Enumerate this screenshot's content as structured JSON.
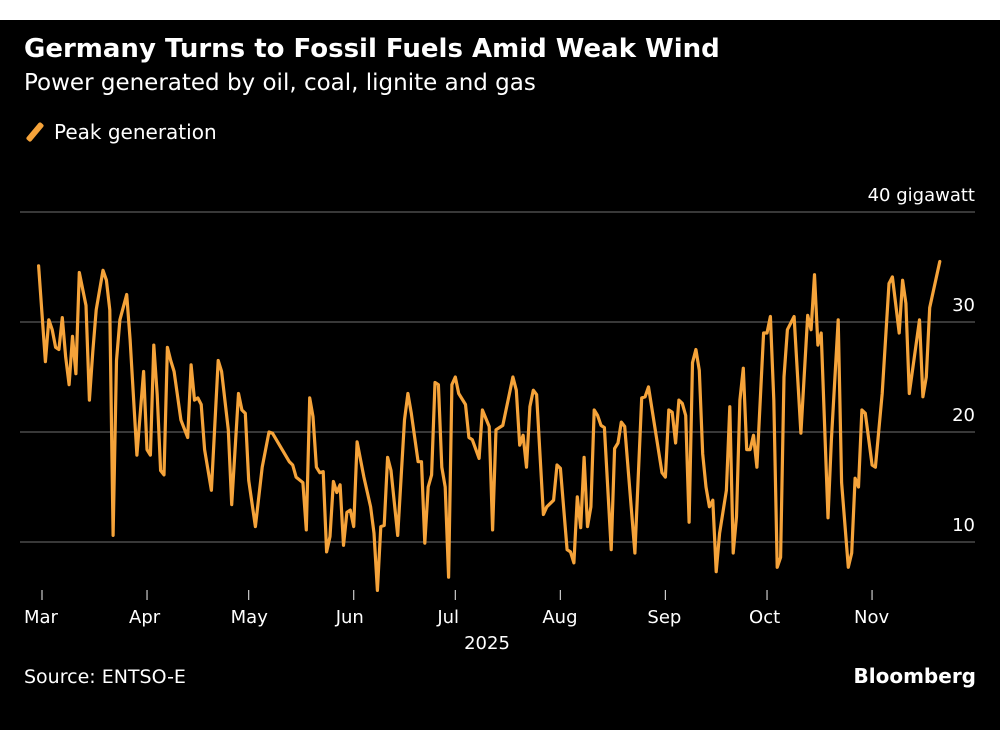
{
  "title": "Germany Turns to Fossil Fuels Amid Weak Wind",
  "subtitle": "Power generated by oil, coal, lignite and gas",
  "source": "Source: ENTSO-E",
  "brand": "Bloomberg",
  "chart_data": {
    "type": "line",
    "title": "Germany Turns to Fossil Fuels Amid Weak Wind",
    "subtitle": "Power generated by oil, coal, lignite and gas",
    "xlabel": "2025",
    "ylabel": "",
    "y_unit_label": "40 gigawatt",
    "ylim": [
      0,
      40
    ],
    "y_ticks": [
      {
        "value": 40,
        "label": "40 gigawatt"
      },
      {
        "value": 30,
        "label": "30"
      },
      {
        "value": 20,
        "label": "20"
      },
      {
        "value": 10,
        "label": "10"
      }
    ],
    "x_ticks": [
      {
        "date": "2025-03-01",
        "label": "Mar"
      },
      {
        "date": "2025-04-01",
        "label": "Apr"
      },
      {
        "date": "2025-05-01",
        "label": "May"
      },
      {
        "date": "2025-06-01",
        "label": "Jun"
      },
      {
        "date": "2025-07-01",
        "label": "Jul"
      },
      {
        "date": "2025-08-01",
        "label": "Aug"
      },
      {
        "date": "2025-09-01",
        "label": "Sep"
      },
      {
        "date": "2025-10-01",
        "label": "Oct"
      },
      {
        "date": "2025-11-01",
        "label": "Nov"
      }
    ],
    "grid": true,
    "legend_position": "top-left",
    "color": "#f5a33a",
    "series": [
      {
        "name": "Peak generation",
        "points": [
          [
            "2025-02-28",
            35.1
          ],
          [
            "2025-03-02",
            26.4
          ],
          [
            "2025-03-03",
            30.2
          ],
          [
            "2025-03-04",
            29.3
          ],
          [
            "2025-03-05",
            27.7
          ],
          [
            "2025-03-06",
            27.5
          ],
          [
            "2025-03-07",
            30.4
          ],
          [
            "2025-03-08",
            26.8
          ],
          [
            "2025-03-09",
            24.3
          ],
          [
            "2025-03-10",
            28.7
          ],
          [
            "2025-03-11",
            25.3
          ],
          [
            "2025-03-12",
            34.5
          ],
          [
            "2025-03-14",
            31.5
          ],
          [
            "2025-03-15",
            22.9
          ],
          [
            "2025-03-16",
            27.3
          ],
          [
            "2025-03-17",
            31.1
          ],
          [
            "2025-03-19",
            34.7
          ],
          [
            "2025-03-20",
            33.8
          ],
          [
            "2025-03-21",
            31.1
          ],
          [
            "2025-03-22",
            10.6
          ],
          [
            "2025-03-23",
            26.5
          ],
          [
            "2025-03-24",
            30.2
          ],
          [
            "2025-03-26",
            32.5
          ],
          [
            "2025-03-27",
            28.4
          ],
          [
            "2025-03-29",
            17.9
          ],
          [
            "2025-03-31",
            25.5
          ],
          [
            "2025-04-01",
            18.4
          ],
          [
            "2025-04-02",
            17.9
          ],
          [
            "2025-04-03",
            27.9
          ],
          [
            "2025-04-04",
            23.4
          ],
          [
            "2025-04-05",
            16.5
          ],
          [
            "2025-04-06",
            16.1
          ],
          [
            "2025-04-07",
            27.7
          ],
          [
            "2025-04-08",
            26.5
          ],
          [
            "2025-04-09",
            25.5
          ],
          [
            "2025-04-11",
            21.1
          ],
          [
            "2025-04-13",
            19.5
          ],
          [
            "2025-04-14",
            26.1
          ],
          [
            "2025-04-15",
            22.9
          ],
          [
            "2025-04-16",
            23.1
          ],
          [
            "2025-04-17",
            22.5
          ],
          [
            "2025-04-18",
            18.4
          ],
          [
            "2025-04-20",
            14.7
          ],
          [
            "2025-04-22",
            26.5
          ],
          [
            "2025-04-23",
            25.5
          ],
          [
            "2025-04-25",
            20.2
          ],
          [
            "2025-04-26",
            13.4
          ],
          [
            "2025-04-28",
            23.5
          ],
          [
            "2025-04-29",
            22.0
          ],
          [
            "2025-04-30",
            21.7
          ],
          [
            "2025-05-01",
            15.6
          ],
          [
            "2025-05-03",
            11.4
          ],
          [
            "2025-05-05",
            16.8
          ],
          [
            "2025-05-07",
            20.0
          ],
          [
            "2025-05-08",
            19.9
          ],
          [
            "2025-05-13",
            17.3
          ],
          [
            "2025-05-14",
            17.0
          ],
          [
            "2025-05-15",
            15.9
          ],
          [
            "2025-05-17",
            15.4
          ],
          [
            "2025-05-18",
            11.1
          ],
          [
            "2025-05-19",
            23.1
          ],
          [
            "2025-05-20",
            21.4
          ],
          [
            "2025-05-21",
            16.8
          ],
          [
            "2025-05-22",
            16.3
          ],
          [
            "2025-05-23",
            16.4
          ],
          [
            "2025-05-24",
            9.1
          ],
          [
            "2025-05-25",
            10.5
          ],
          [
            "2025-05-26",
            15.5
          ],
          [
            "2025-05-27",
            14.5
          ],
          [
            "2025-05-28",
            15.2
          ],
          [
            "2025-05-29",
            9.7
          ],
          [
            "2025-05-30",
            12.7
          ],
          [
            "2025-05-31",
            12.9
          ],
          [
            "2025-06-01",
            11.4
          ],
          [
            "2025-06-02",
            19.1
          ],
          [
            "2025-06-04",
            15.9
          ],
          [
            "2025-06-06",
            13.2
          ],
          [
            "2025-06-07",
            10.8
          ],
          [
            "2025-06-08",
            5.6
          ],
          [
            "2025-06-09",
            11.4
          ],
          [
            "2025-06-10",
            11.5
          ],
          [
            "2025-06-11",
            17.7
          ],
          [
            "2025-06-12",
            16.5
          ],
          [
            "2025-06-14",
            10.6
          ],
          [
            "2025-06-16",
            21.1
          ],
          [
            "2025-06-17",
            23.5
          ],
          [
            "2025-06-18",
            21.7
          ],
          [
            "2025-06-20",
            17.3
          ],
          [
            "2025-06-21",
            17.3
          ],
          [
            "2025-06-22",
            9.9
          ],
          [
            "2025-06-23",
            15.0
          ],
          [
            "2025-06-24",
            16.1
          ],
          [
            "2025-06-25",
            24.5
          ],
          [
            "2025-06-26",
            24.3
          ],
          [
            "2025-06-27",
            16.8
          ],
          [
            "2025-06-28",
            15.0
          ],
          [
            "2025-06-29",
            6.8
          ],
          [
            "2025-06-30",
            24.3
          ],
          [
            "2025-07-01",
            25.0
          ],
          [
            "2025-07-02",
            23.5
          ],
          [
            "2025-07-04",
            22.5
          ],
          [
            "2025-07-05",
            19.5
          ],
          [
            "2025-07-06",
            19.3
          ],
          [
            "2025-07-08",
            17.6
          ],
          [
            "2025-07-09",
            22.0
          ],
          [
            "2025-07-11",
            20.5
          ],
          [
            "2025-07-12",
            11.1
          ],
          [
            "2025-07-13",
            20.2
          ],
          [
            "2025-07-15",
            20.6
          ],
          [
            "2025-07-18",
            25.0
          ],
          [
            "2025-07-19",
            23.8
          ],
          [
            "2025-07-20",
            18.8
          ],
          [
            "2025-07-21",
            19.7
          ],
          [
            "2025-07-22",
            16.8
          ],
          [
            "2025-07-23",
            22.3
          ],
          [
            "2025-07-24",
            23.8
          ],
          [
            "2025-07-25",
            23.4
          ],
          [
            "2025-07-27",
            12.5
          ],
          [
            "2025-07-28",
            13.2
          ],
          [
            "2025-07-30",
            13.8
          ],
          [
            "2025-07-31",
            17.0
          ],
          [
            "2025-08-01",
            16.7
          ],
          [
            "2025-08-03",
            9.3
          ],
          [
            "2025-08-04",
            9.1
          ],
          [
            "2025-08-05",
            8.1
          ],
          [
            "2025-08-06",
            14.1
          ],
          [
            "2025-08-07",
            11.3
          ],
          [
            "2025-08-08",
            17.7
          ],
          [
            "2025-08-09",
            11.4
          ],
          [
            "2025-08-10",
            13.2
          ],
          [
            "2025-08-11",
            22.0
          ],
          [
            "2025-08-12",
            21.5
          ],
          [
            "2025-08-13",
            20.6
          ],
          [
            "2025-08-14",
            20.4
          ],
          [
            "2025-08-16",
            9.3
          ],
          [
            "2025-08-17",
            18.5
          ],
          [
            "2025-08-18",
            19.0
          ],
          [
            "2025-08-19",
            20.9
          ],
          [
            "2025-08-20",
            20.5
          ],
          [
            "2025-08-23",
            9.0
          ],
          [
            "2025-08-25",
            23.1
          ],
          [
            "2025-08-26",
            23.2
          ],
          [
            "2025-08-27",
            24.1
          ],
          [
            "2025-08-31",
            16.3
          ],
          [
            "2025-09-01",
            15.9
          ],
          [
            "2025-09-02",
            22.0
          ],
          [
            "2025-09-03",
            21.8
          ],
          [
            "2025-09-04",
            19.0
          ],
          [
            "2025-09-05",
            22.9
          ],
          [
            "2025-09-06",
            22.6
          ],
          [
            "2025-09-07",
            21.5
          ],
          [
            "2025-09-08",
            11.8
          ],
          [
            "2025-09-09",
            26.3
          ],
          [
            "2025-09-10",
            27.5
          ],
          [
            "2025-09-11",
            25.6
          ],
          [
            "2025-09-12",
            18.0
          ],
          [
            "2025-09-13",
            15.0
          ],
          [
            "2025-09-14",
            13.2
          ],
          [
            "2025-09-15",
            13.8
          ],
          [
            "2025-09-16",
            7.3
          ],
          [
            "2025-09-17",
            10.8
          ],
          [
            "2025-09-19",
            14.7
          ],
          [
            "2025-09-20",
            22.3
          ],
          [
            "2025-09-21",
            9.0
          ],
          [
            "2025-09-22",
            12.3
          ],
          [
            "2025-09-23",
            22.9
          ],
          [
            "2025-09-24",
            25.8
          ],
          [
            "2025-09-25",
            18.4
          ],
          [
            "2025-09-26",
            18.4
          ],
          [
            "2025-09-27",
            19.7
          ],
          [
            "2025-09-28",
            16.8
          ],
          [
            "2025-09-30",
            29.0
          ],
          [
            "2025-10-01",
            29.0
          ],
          [
            "2025-10-02",
            30.5
          ],
          [
            "2025-10-03",
            22.9
          ],
          [
            "2025-10-04",
            7.7
          ],
          [
            "2025-10-05",
            8.6
          ],
          [
            "2025-10-06",
            25.0
          ],
          [
            "2025-10-07",
            29.3
          ],
          [
            "2025-10-09",
            30.5
          ],
          [
            "2025-10-11",
            19.9
          ],
          [
            "2025-10-13",
            30.6
          ],
          [
            "2025-10-14",
            29.3
          ],
          [
            "2025-10-15",
            34.3
          ],
          [
            "2025-10-16",
            27.9
          ],
          [
            "2025-10-17",
            29.0
          ],
          [
            "2025-10-19",
            12.2
          ],
          [
            "2025-10-20",
            19.3
          ],
          [
            "2025-10-22",
            30.2
          ],
          [
            "2025-10-23",
            15.4
          ],
          [
            "2025-10-25",
            7.7
          ],
          [
            "2025-10-26",
            9.0
          ],
          [
            "2025-10-27",
            15.8
          ],
          [
            "2025-10-28",
            15.0
          ],
          [
            "2025-10-29",
            22.0
          ],
          [
            "2025-10-30",
            21.7
          ],
          [
            "2025-11-01",
            17.0
          ],
          [
            "2025-11-02",
            16.8
          ],
          [
            "2025-11-04",
            23.5
          ],
          [
            "2025-11-06",
            33.5
          ],
          [
            "2025-11-07",
            34.1
          ],
          [
            "2025-11-09",
            29.0
          ],
          [
            "2025-11-10",
            33.8
          ],
          [
            "2025-11-11",
            31.7
          ],
          [
            "2025-11-12",
            23.5
          ],
          [
            "2025-11-15",
            30.2
          ],
          [
            "2025-11-16",
            23.2
          ],
          [
            "2025-11-17",
            25.0
          ],
          [
            "2025-11-18",
            31.3
          ],
          [
            "2025-11-21",
            35.5
          ]
        ]
      }
    ]
  }
}
